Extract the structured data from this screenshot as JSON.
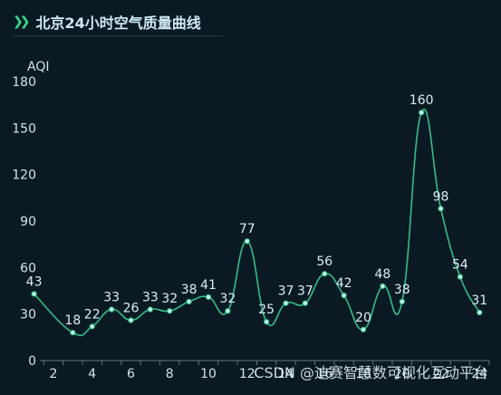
{
  "title": "北京24小时空气质量曲线",
  "watermark": "CSDN @迪赛智慧数可视化互动平台",
  "colors": {
    "background": "#0b1a22",
    "line": "#2fbf8a",
    "point": "#bff8e6",
    "label": "#d8eef4",
    "axis": "#cfe4ea",
    "accent": "#2fe08f"
  },
  "chart_data": {
    "type": "line",
    "title": "北京24小时空气质量曲线",
    "ylabel": "AQI",
    "xlabel": "",
    "ylim": [
      0,
      180
    ],
    "yticks": [
      0,
      30,
      60,
      90,
      120,
      150,
      180
    ],
    "xticks": [
      2,
      4,
      6,
      8,
      10,
      12,
      14,
      16,
      18,
      20,
      22,
      24
    ],
    "xlim": [
      1.3,
      24.5
    ],
    "grid": false,
    "smooth": true,
    "x": [
      1,
      3,
      4,
      5,
      6,
      7,
      8,
      9,
      10,
      11,
      12,
      13,
      14,
      15,
      16,
      17,
      18,
      19,
      20,
      21,
      22,
      23,
      24
    ],
    "values": [
      43,
      18,
      22,
      33,
      26,
      33,
      32,
      38,
      41,
      32,
      77,
      25,
      37,
      37,
      56,
      42,
      20,
      48,
      38,
      160,
      98,
      54,
      31
    ]
  }
}
